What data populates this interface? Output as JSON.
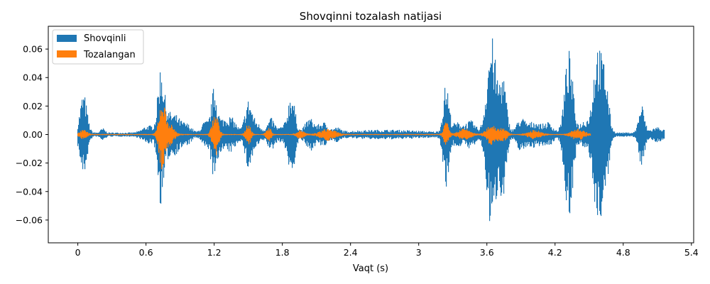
{
  "chart_data": {
    "type": "line",
    "title": "Shovqinni tozalash natijasi",
    "xlabel": "Vaqt (s)",
    "ylabel": "",
    "xlim": [
      -0.26,
      5.42
    ],
    "ylim": [
      -0.076,
      0.076
    ],
    "xticks": [
      {
        "value": 0,
        "label": "0"
      },
      {
        "value": 0.6,
        "label": "0.6"
      },
      {
        "value": 1.2,
        "label": "1.2"
      },
      {
        "value": 1.8,
        "label": "1.8"
      },
      {
        "value": 2.4,
        "label": "2.4"
      },
      {
        "value": 3.0,
        "label": "3"
      },
      {
        "value": 3.6,
        "label": "3.6"
      },
      {
        "value": 4.2,
        "label": "4.2"
      },
      {
        "value": 4.8,
        "label": "4.8"
      },
      {
        "value": 5.4,
        "label": "5.4"
      }
    ],
    "yticks": [
      {
        "value": 0.06,
        "label": "0.06"
      },
      {
        "value": 0.04,
        "label": "0.04"
      },
      {
        "value": 0.02,
        "label": "0.02"
      },
      {
        "value": 0.0,
        "label": "0.00"
      },
      {
        "value": -0.02,
        "label": "−0.02"
      },
      {
        "value": -0.04,
        "label": "−0.04"
      },
      {
        "value": -0.06,
        "label": "−0.06"
      }
    ],
    "legend_position": "top-left",
    "series": [
      {
        "name": "Shovqinli",
        "color": "#1f77b4",
        "duration": 5.16,
        "floor": 0.0015,
        "bursts": [
          {
            "t": 0.05,
            "a": 0.028,
            "w": 0.03
          },
          {
            "t": 0.22,
            "a": 0.003,
            "w": 0.02
          },
          {
            "t": 0.62,
            "a": 0.005,
            "w": 0.05
          },
          {
            "t": 0.73,
            "a": 0.04,
            "w": 0.025
          },
          {
            "t": 0.78,
            "a": 0.014,
            "w": 0.05
          },
          {
            "t": 0.87,
            "a": 0.009,
            "w": 0.04
          },
          {
            "t": 0.96,
            "a": 0.006,
            "w": 0.04
          },
          {
            "t": 1.12,
            "a": 0.008,
            "w": 0.03
          },
          {
            "t": 1.2,
            "a": 0.03,
            "w": 0.025
          },
          {
            "t": 1.28,
            "a": 0.009,
            "w": 0.05
          },
          {
            "t": 1.36,
            "a": 0.008,
            "w": 0.04
          },
          {
            "t": 1.5,
            "a": 0.022,
            "w": 0.03
          },
          {
            "t": 1.57,
            "a": 0.007,
            "w": 0.04
          },
          {
            "t": 1.7,
            "a": 0.01,
            "w": 0.03
          },
          {
            "t": 1.8,
            "a": 0.004,
            "w": 0.04
          },
          {
            "t": 1.88,
            "a": 0.028,
            "w": 0.03
          },
          {
            "t": 2.04,
            "a": 0.01,
            "w": 0.04
          },
          {
            "t": 2.16,
            "a": 0.007,
            "w": 0.04
          },
          {
            "t": 2.28,
            "a": 0.003,
            "w": 0.03
          },
          {
            "t": 2.7,
            "a": 0.002,
            "w": 0.3
          },
          {
            "t": 3.24,
            "a": 0.034,
            "w": 0.025
          },
          {
            "t": 3.34,
            "a": 0.007,
            "w": 0.05
          },
          {
            "t": 3.46,
            "a": 0.008,
            "w": 0.04
          },
          {
            "t": 3.64,
            "a": 0.068,
            "w": 0.04
          },
          {
            "t": 3.74,
            "a": 0.04,
            "w": 0.03
          },
          {
            "t": 3.9,
            "a": 0.01,
            "w": 0.04
          },
          {
            "t": 4.02,
            "a": 0.008,
            "w": 0.05
          },
          {
            "t": 4.14,
            "a": 0.007,
            "w": 0.04
          },
          {
            "t": 4.32,
            "a": 0.058,
            "w": 0.035
          },
          {
            "t": 4.46,
            "a": 0.009,
            "w": 0.04
          },
          {
            "t": 4.57,
            "a": 0.06,
            "w": 0.035
          },
          {
            "t": 4.64,
            "a": 0.04,
            "w": 0.03
          },
          {
            "t": 4.96,
            "a": 0.02,
            "w": 0.025
          },
          {
            "t": 5.1,
            "a": 0.004,
            "w": 0.05
          }
        ]
      },
      {
        "name": "Tozalangan",
        "color": "#ff7f0e",
        "duration": 4.51,
        "floor": 0.0004,
        "bursts": [
          {
            "t": 0.05,
            "a": 0.003,
            "w": 0.03
          },
          {
            "t": 0.74,
            "a": 0.023,
            "w": 0.025
          },
          {
            "t": 0.8,
            "a": 0.008,
            "w": 0.04
          },
          {
            "t": 1.21,
            "a": 0.016,
            "w": 0.025
          },
          {
            "t": 1.5,
            "a": 0.008,
            "w": 0.02
          },
          {
            "t": 1.68,
            "a": 0.005,
            "w": 0.02
          },
          {
            "t": 1.96,
            "a": 0.003,
            "w": 0.03
          },
          {
            "t": 2.2,
            "a": 0.004,
            "w": 0.06
          },
          {
            "t": 3.24,
            "a": 0.009,
            "w": 0.02
          },
          {
            "t": 3.4,
            "a": 0.004,
            "w": 0.05
          },
          {
            "t": 3.64,
            "a": 0.007,
            "w": 0.04
          },
          {
            "t": 3.74,
            "a": 0.005,
            "w": 0.03
          },
          {
            "t": 4.02,
            "a": 0.003,
            "w": 0.05
          },
          {
            "t": 4.4,
            "a": 0.004,
            "w": 0.05
          }
        ]
      }
    ]
  }
}
